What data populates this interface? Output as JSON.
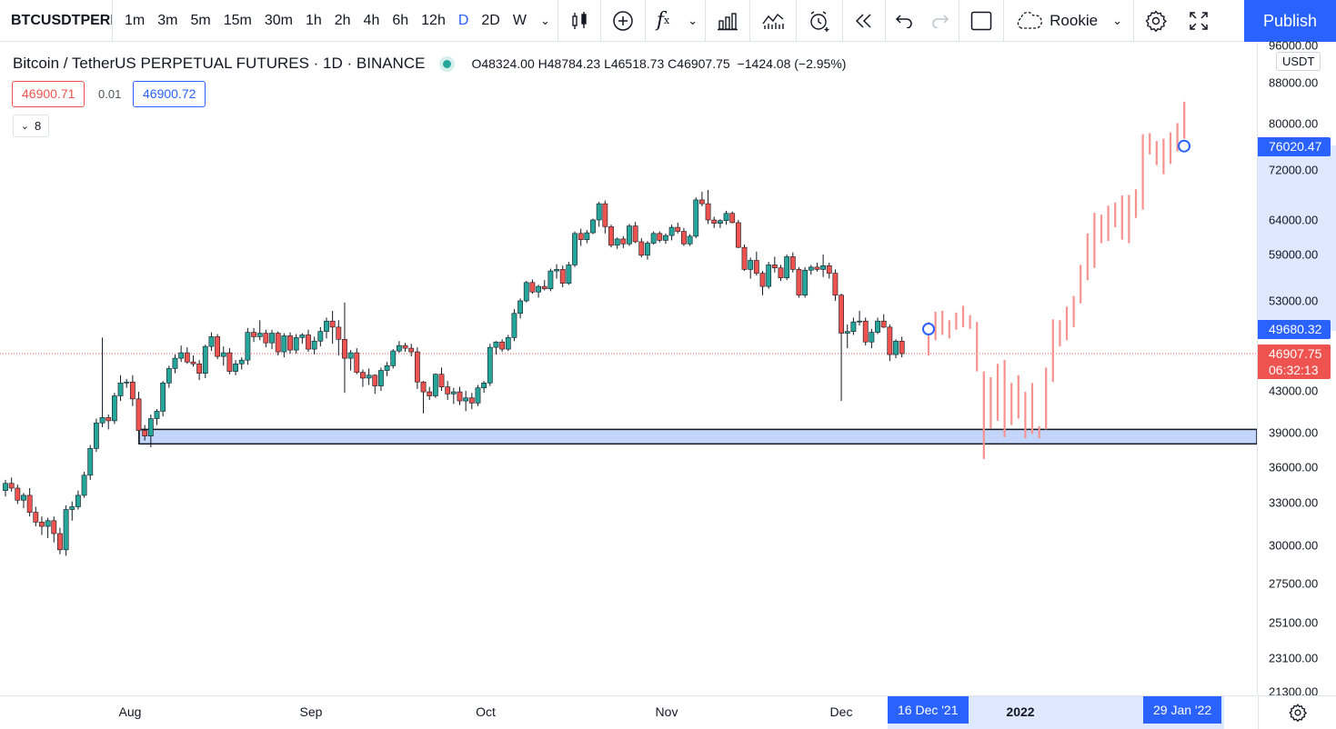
{
  "toolbar": {
    "symbol": "BTCUSDTPERP",
    "intervals": [
      "1m",
      "3m",
      "5m",
      "15m",
      "30m",
      "1h",
      "2h",
      "4h",
      "6h",
      "12h",
      "D",
      "2D",
      "W"
    ],
    "active_interval": "D",
    "template_label": "Rookie",
    "publish_label": "Publish"
  },
  "legend": {
    "title": "Bitcoin / TetherUS PERPETUAL FUTURES · 1D · BINANCE",
    "open_label": "O",
    "open": "48324.00",
    "high_label": "H",
    "high": "48784.23",
    "low_label": "L",
    "low": "46518.73",
    "close_label": "C",
    "close": "46907.75",
    "change": "−1424.08 (−2.95%)",
    "sell_price": "46900.71",
    "spread": "0.01",
    "buy_price": "46900.72",
    "indicators_count": "8"
  },
  "price_axis": {
    "currency": "USDT",
    "ticks": [
      "96000.00",
      "88000.00",
      "80000.00",
      "72000.00",
      "64000.00",
      "59000.00",
      "53000.00",
      "43000.00",
      "39000.00",
      "36000.00",
      "33000.00",
      "30000.00",
      "27500.00",
      "25100.00",
      "23100.00",
      "21300.00"
    ],
    "tag_projection_end": "76020.47",
    "tag_projection_start": "49680.32",
    "tag_last_price": "46907.75",
    "tag_countdown": "06:32:13"
  },
  "time_axis": {
    "labels": [
      "Aug",
      "Sep",
      "Oct",
      "Nov",
      "Dec",
      "2022"
    ],
    "range_start": "16 Dec '21",
    "range_end": "29 Jan '22"
  },
  "colors": {
    "up": "#26a69a",
    "down": "#ef5350",
    "projection": "#f7928e",
    "accent": "#2962ff",
    "support_zone": "#c3d5fb"
  },
  "chart_data": {
    "type": "candlestick",
    "interval": "1D",
    "support_zone": [
      38000,
      39300
    ],
    "candles_ohlc": [
      [
        34000,
        34900,
        33500,
        34600
      ],
      [
        34600,
        35100,
        33900,
        34200
      ],
      [
        34200,
        34500,
        32900,
        33200
      ],
      [
        33200,
        33800,
        32600,
        33600
      ],
      [
        33600,
        34200,
        32000,
        32300
      ],
      [
        32300,
        32700,
        31300,
        31600
      ],
      [
        31600,
        32000,
        30700,
        31300
      ],
      [
        31300,
        31900,
        30500,
        31700
      ],
      [
        31700,
        32000,
        30200,
        30800
      ],
      [
        30800,
        31200,
        29400,
        29700
      ],
      [
        29700,
        32800,
        29300,
        32500
      ],
      [
        32500,
        33100,
        31700,
        32700
      ],
      [
        32700,
        34000,
        32500,
        33600
      ],
      [
        33600,
        35600,
        33400,
        35300
      ],
      [
        35300,
        37900,
        34900,
        37600
      ],
      [
        37600,
        40300,
        37300,
        39900
      ],
      [
        39900,
        48700,
        39500,
        40400
      ],
      [
        40400,
        40700,
        39300,
        40100
      ],
      [
        40100,
        42800,
        39800,
        42500
      ],
      [
        42500,
        44600,
        42000,
        43800
      ],
      [
        43800,
        44200,
        43300,
        43900
      ],
      [
        43900,
        44600,
        41500,
        42200
      ],
      [
        42200,
        42900,
        38000,
        39200
      ],
      [
        39200,
        39700,
        38300,
        38700
      ],
      [
        38700,
        40700,
        37700,
        40300
      ],
      [
        40300,
        41200,
        39700,
        41000
      ],
      [
        41000,
        44000,
        40500,
        43800
      ],
      [
        43800,
        45600,
        43300,
        45300
      ],
      [
        45300,
        46800,
        44800,
        46400
      ],
      [
        46400,
        47800,
        46000,
        47000
      ],
      [
        47000,
        47600,
        45800,
        46000
      ],
      [
        46000,
        46700,
        45500,
        45800
      ],
      [
        45800,
        46200,
        44100,
        44800
      ],
      [
        44800,
        47900,
        44300,
        47700
      ],
      [
        47700,
        49300,
        47200,
        48800
      ],
      [
        48800,
        49100,
        46300,
        46600
      ],
      [
        46600,
        47700,
        45600,
        47000
      ],
      [
        47000,
        47500,
        44700,
        45000
      ],
      [
        45000,
        46200,
        44600,
        45800
      ],
      [
        45800,
        46500,
        45200,
        46200
      ],
      [
        46200,
        49800,
        45700,
        49300
      ],
      [
        49300,
        49800,
        48200,
        48800
      ],
      [
        48800,
        50700,
        48400,
        49200
      ],
      [
        49200,
        49600,
        47600,
        48100
      ],
      [
        48100,
        49600,
        47400,
        49200
      ],
      [
        49200,
        49400,
        46700,
        47100
      ],
      [
        47100,
        49200,
        46500,
        48900
      ],
      [
        48900,
        49300,
        46900,
        47300
      ],
      [
        47300,
        49100,
        46900,
        48700
      ],
      [
        48700,
        49200,
        48000,
        49000
      ],
      [
        49000,
        49600,
        47100,
        47400
      ],
      [
        47400,
        48800,
        46800,
        48300
      ],
      [
        48300,
        49900,
        47700,
        49400
      ],
      [
        49400,
        51000,
        48600,
        50600
      ],
      [
        50600,
        51800,
        48000,
        49900
      ],
      [
        49900,
        50700,
        46700,
        48500
      ],
      [
        48500,
        52800,
        42800,
        46400
      ],
      [
        46400,
        47300,
        45100,
        47000
      ],
      [
        47000,
        47500,
        44700,
        44900
      ],
      [
        44900,
        45200,
        43400,
        44300
      ],
      [
        44300,
        45300,
        43600,
        44600
      ],
      [
        44600,
        44700,
        42700,
        43500
      ],
      [
        43500,
        45400,
        43000,
        45100
      ],
      [
        45100,
        46000,
        44500,
        45600
      ],
      [
        45600,
        47400,
        45300,
        47200
      ],
      [
        47200,
        48300,
        47000,
        47800
      ],
      [
        47800,
        48100,
        47100,
        47500
      ],
      [
        47500,
        48000,
        46600,
        47100
      ],
      [
        47100,
        47600,
        43200,
        43900
      ],
      [
        43900,
        44000,
        40800,
        42900
      ],
      [
        42900,
        43400,
        42100,
        42500
      ],
      [
        42500,
        44800,
        42300,
        44700
      ],
      [
        44700,
        45400,
        43000,
        43400
      ],
      [
        43400,
        44000,
        42100,
        42700
      ],
      [
        42700,
        43300,
        41700,
        42900
      ],
      [
        42900,
        43400,
        41600,
        42000
      ],
      [
        42000,
        43000,
        41000,
        42300
      ],
      [
        42300,
        42800,
        41200,
        41800
      ],
      [
        41800,
        43600,
        41500,
        43300
      ],
      [
        43300,
        44000,
        42800,
        43800
      ],
      [
        43800,
        48000,
        43500,
        47600
      ],
      [
        47600,
        48300,
        46800,
        48200
      ],
      [
        48200,
        48500,
        47100,
        47400
      ],
      [
        47400,
        49000,
        47200,
        48700
      ],
      [
        48700,
        52000,
        48300,
        51500
      ],
      [
        51500,
        53300,
        50900,
        53000
      ],
      [
        53000,
        55500,
        52800,
        55300
      ],
      [
        55300,
        55700,
        53900,
        54100
      ],
      [
        54100,
        55000,
        53400,
        54800
      ],
      [
        54800,
        55600,
        54300,
        54500
      ],
      [
        54500,
        57100,
        54200,
        56800
      ],
      [
        56800,
        57700,
        55800,
        57000
      ],
      [
        57000,
        57500,
        54700,
        55200
      ],
      [
        55200,
        58000,
        55000,
        57600
      ],
      [
        57600,
        62300,
        57300,
        62000
      ],
      [
        62000,
        62700,
        60200,
        61100
      ],
      [
        61100,
        62500,
        60600,
        62100
      ],
      [
        62100,
        64200,
        61900,
        64000
      ],
      [
        64000,
        66800,
        63000,
        66500
      ],
      [
        66500,
        67000,
        62000,
        63000
      ],
      [
        63000,
        63300,
        60000,
        60300
      ],
      [
        60300,
        61400,
        59800,
        61200
      ],
      [
        61200,
        61600,
        59900,
        60500
      ],
      [
        60500,
        63400,
        60200,
        63100
      ],
      [
        63100,
        63700,
        60600,
        60800
      ],
      [
        60800,
        61300,
        58600,
        58900
      ],
      [
        58900,
        60900,
        58300,
        60600
      ],
      [
        60600,
        62300,
        60400,
        62000
      ],
      [
        62000,
        62300,
        60700,
        61000
      ],
      [
        61000,
        62000,
        60500,
        61700
      ],
      [
        61700,
        63300,
        61000,
        62900
      ],
      [
        62900,
        63600,
        62000,
        62300
      ],
      [
        62300,
        62800,
        60200,
        60500
      ],
      [
        60500,
        61900,
        60200,
        61600
      ],
      [
        61600,
        67500,
        61300,
        67100
      ],
      [
        67100,
        68400,
        66100,
        66500
      ],
      [
        66500,
        68700,
        63400,
        64000
      ],
      [
        64000,
        64500,
        62800,
        63500
      ],
      [
        63500,
        64100,
        62800,
        63900
      ],
      [
        63900,
        65400,
        63300,
        65000
      ],
      [
        65000,
        65300,
        63500,
        63600
      ],
      [
        63600,
        64000,
        59900,
        60000
      ],
      [
        60000,
        60400,
        56800,
        57000
      ],
      [
        57000,
        58600,
        55800,
        58200
      ],
      [
        58200,
        59400,
        56200,
        56500
      ],
      [
        56500,
        56800,
        53700,
        54800
      ],
      [
        54800,
        58000,
        54500,
        57600
      ],
      [
        57600,
        58700,
        56600,
        57200
      ],
      [
        57200,
        57600,
        55500,
        55900
      ],
      [
        55900,
        59000,
        55600,
        58700
      ],
      [
        58700,
        59300,
        56600,
        57000
      ],
      [
        57000,
        57300,
        53400,
        53700
      ],
      [
        53700,
        57300,
        53400,
        56900
      ],
      [
        56900,
        57600,
        56300,
        57300
      ],
      [
        57300,
        57900,
        56700,
        57000
      ],
      [
        57000,
        59000,
        56000,
        57500
      ],
      [
        57500,
        57900,
        55800,
        56500
      ],
      [
        56500,
        57000,
        53000,
        53700
      ],
      [
        53700,
        53900,
        42000,
        49200
      ],
      [
        49200,
        50200,
        47500,
        49400
      ],
      [
        49400,
        51000,
        49000,
        50500
      ],
      [
        50500,
        51800,
        50100,
        50600
      ],
      [
        50600,
        51000,
        47800,
        48200
      ],
      [
        48200,
        49700,
        47500,
        49300
      ],
      [
        49300,
        51000,
        49100,
        50600
      ],
      [
        50600,
        51400,
        49800,
        49900
      ],
      [
        49900,
        50200,
        46100,
        46800
      ],
      [
        46800,
        48500,
        46400,
        48300
      ],
      [
        48300,
        48800,
        46500,
        46900
      ]
    ],
    "projection_bars": [
      [
        50500,
        46700
      ],
      [
        51700,
        48400
      ],
      [
        51800,
        49000
      ],
      [
        50700,
        48600
      ],
      [
        51600,
        49600
      ],
      [
        52400,
        49900
      ],
      [
        51300,
        49700
      ],
      [
        50500,
        45000
      ],
      [
        45000,
        36700
      ],
      [
        44400,
        39400
      ],
      [
        45800,
        40100
      ],
      [
        46200,
        38600
      ],
      [
        43800,
        39700
      ],
      [
        44600,
        40300
      ],
      [
        42900,
        38500
      ],
      [
        43800,
        38900
      ],
      [
        39600,
        38500
      ],
      [
        45400,
        39300
      ],
      [
        50800,
        43900
      ],
      [
        50700,
        47700
      ],
      [
        52300,
        48400
      ],
      [
        53600,
        49900
      ],
      [
        57600,
        52700
      ],
      [
        62000,
        55600
      ],
      [
        65100,
        57200
      ],
      [
        64800,
        60600
      ],
      [
        66200,
        60900
      ],
      [
        66700,
        62900
      ],
      [
        67800,
        61100
      ],
      [
        67900,
        60600
      ],
      [
        68800,
        64300
      ],
      [
        78100,
        65600
      ],
      [
        78300,
        74600
      ],
      [
        76900,
        72800
      ],
      [
        77300,
        71300
      ],
      [
        78400,
        73000
      ],
      [
        80100,
        75100
      ],
      [
        84200,
        77300
      ]
    ]
  }
}
